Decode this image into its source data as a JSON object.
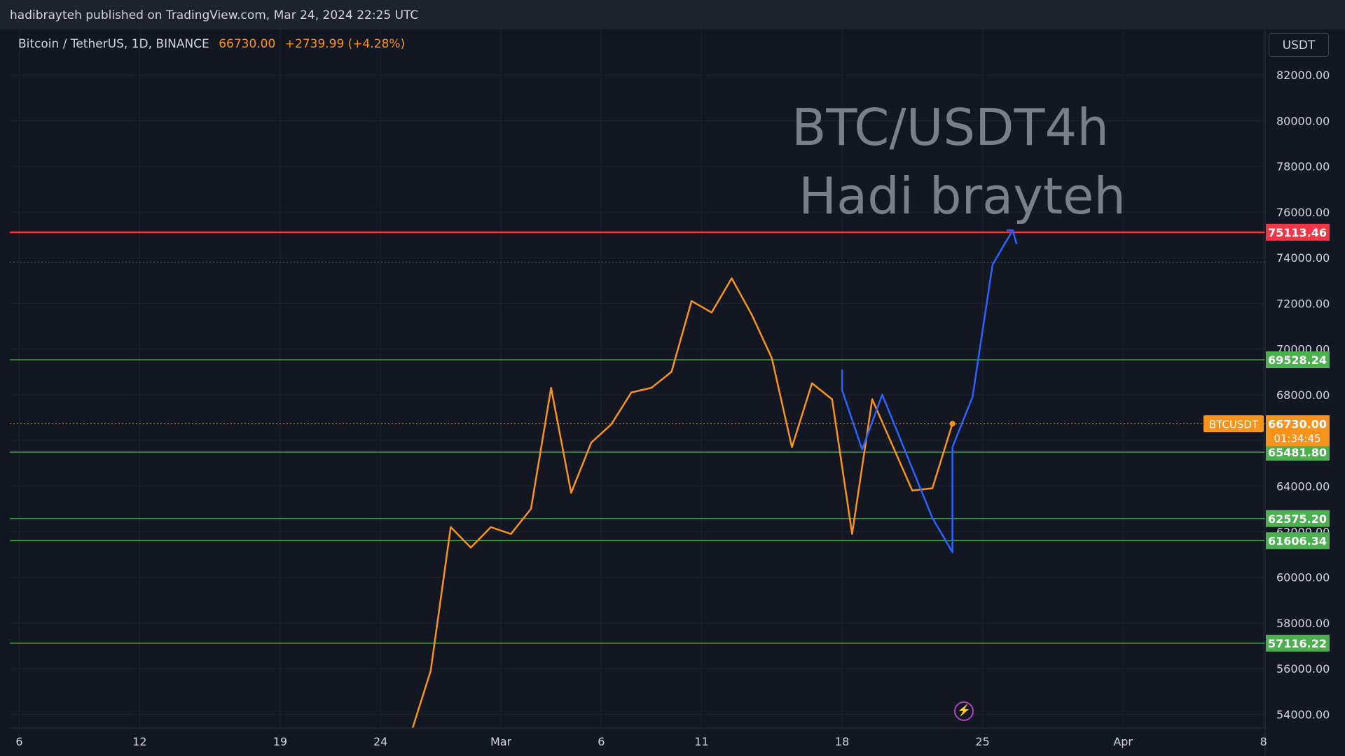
{
  "header": {
    "published": "hadibrayteh published on TradingView.com, Mar 24, 2024 22:25 UTC"
  },
  "legend": {
    "symbol": "Bitcoin / TetherUS, 1D, BINANCE",
    "price": "66730.00",
    "change": "+2739.99 (+4.28%)"
  },
  "currency_button": "USDT",
  "watermark": {
    "line1": "BTC/USDT4h",
    "line2": "Hadi brayteh"
  },
  "colors": {
    "background": "#131722",
    "price_line": "#f7931a",
    "drawing_line": "#2962ff",
    "resistance": "#f23645",
    "support": "#4caf50",
    "grid": "#1f2330"
  },
  "chart_data": {
    "type": "line",
    "x_ticks": [
      {
        "label": "6",
        "day": 37
      },
      {
        "label": "12",
        "day": 43
      },
      {
        "label": "19",
        "day": 50
      },
      {
        "label": "24",
        "day": 55
      },
      {
        "label": "Mar",
        "day": 61
      },
      {
        "label": "6",
        "day": 66
      },
      {
        "label": "11",
        "day": 71
      },
      {
        "label": "18",
        "day": 78
      },
      {
        "label": "25",
        "day": 85
      },
      {
        "label": "Apr",
        "day": 92
      },
      {
        "label": "8",
        "day": 99
      }
    ],
    "x_range": [
      36.53,
      99.08
    ],
    "ylim": [
      53400,
      84000
    ],
    "y_ticks": [
      54000,
      56000,
      58000,
      60000,
      62000,
      64000,
      66000,
      68000,
      70000,
      72000,
      74000,
      76000,
      78000,
      80000,
      82000
    ],
    "y_tick_labels": [
      "54000.00",
      "56000.00",
      "58000.00",
      "60000.00",
      "62000.00",
      "64000.00",
      "66000.00",
      "68000.00",
      "70000.00",
      "72000.00",
      "74000.00",
      "76000.00",
      "78000.00",
      "80000.00",
      "82000.00"
    ],
    "grid": true,
    "series": [
      {
        "points": [
          [
            56.6,
            53400
          ],
          [
            57.5,
            55900
          ],
          [
            58.5,
            62200
          ],
          [
            59.5,
            61300
          ],
          [
            60.5,
            62200
          ],
          [
            61.5,
            61900
          ],
          [
            62.5,
            63000
          ],
          [
            63.5,
            68300
          ],
          [
            64.5,
            63700
          ],
          [
            65.5,
            65900
          ],
          [
            66.5,
            66700
          ],
          [
            67.5,
            68100
          ],
          [
            68.5,
            68300
          ],
          [
            69.5,
            69000
          ],
          [
            70.5,
            72100
          ],
          [
            71.5,
            71600
          ],
          [
            72.5,
            73100
          ],
          [
            73.5,
            71500
          ],
          [
            74.5,
            69600
          ],
          [
            75.5,
            65700
          ],
          [
            76.5,
            68500
          ],
          [
            77.5,
            67800
          ],
          [
            78.5,
            61900
          ],
          [
            79.5,
            67800
          ],
          [
            80.5,
            65800
          ],
          [
            81.5,
            63800
          ],
          [
            82.5,
            63900
          ],
          [
            83.5,
            66730
          ]
        ]
      }
    ],
    "drawing_path": [
      [
        78,
        69100
      ],
      [
        78,
        68200
      ],
      [
        79,
        65600
      ],
      [
        80,
        68000
      ],
      [
        82.5,
        62600
      ],
      [
        83.5,
        61100
      ],
      [
        83.5,
        65700
      ],
      [
        84.5,
        67900
      ],
      [
        85.5,
        73700
      ],
      [
        86.5,
        75200
      ]
    ],
    "drawing_arrow": [
      [
        86.2,
        75200
      ],
      [
        86.5,
        75200
      ],
      [
        86.7,
        74600
      ]
    ],
    "hlines": [
      {
        "value": 75113.46,
        "label": "75113.46",
        "kind": "resistance"
      },
      {
        "value": 69528.24,
        "label": "69528.24",
        "kind": "support"
      },
      {
        "value": 65481.8,
        "label": "65481.80",
        "kind": "support"
      },
      {
        "value": 62575.2,
        "label": "62575.20",
        "kind": "support"
      },
      {
        "value": 61606.34,
        "label": "61606.34",
        "kind": "support"
      },
      {
        "value": 57116.22,
        "label": "57116.22",
        "kind": "support"
      }
    ],
    "dotted_levels": [
      73800
    ],
    "last_price": {
      "value": 66730,
      "label": "66730.00",
      "countdown": "01:34:45",
      "symbol": "BTCUSDT"
    }
  }
}
